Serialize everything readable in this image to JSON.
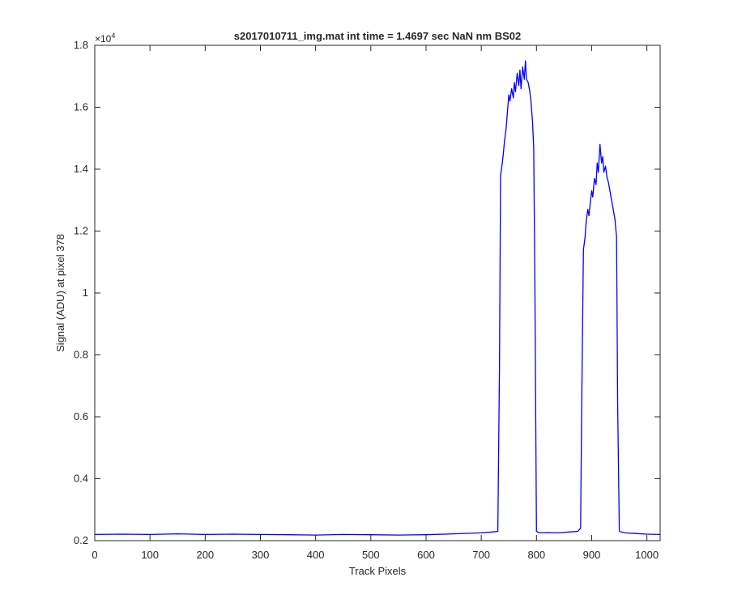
{
  "chart_data": {
    "type": "line",
    "title": "s2017010711_img.mat int time = 1.4697 sec  NaN nm BS02",
    "xlabel": "Track Pixels",
    "ylabel": "Signal (ADU) at pixel 378",
    "y_exponent_label": "×10",
    "y_exponent_power": "4",
    "xlim": [
      0,
      1024
    ],
    "ylim": [
      2000,
      18000
    ],
    "x_ticks": [
      0,
      100,
      200,
      300,
      400,
      500,
      600,
      700,
      800,
      900,
      1000
    ],
    "x_tick_labels": [
      "0",
      "100",
      "200",
      "300",
      "400",
      "500",
      "600",
      "700",
      "800",
      "900",
      "1000"
    ],
    "y_ticks": [
      2000,
      4000,
      6000,
      8000,
      10000,
      12000,
      14000,
      16000,
      18000
    ],
    "y_tick_labels": [
      "0.2",
      "0.4",
      "0.6",
      "0.8",
      "1",
      "1.2",
      "1.4",
      "1.6",
      "1.8"
    ],
    "grid": false,
    "line_color": "#0000ff",
    "series": [
      {
        "x": [
          0,
          50,
          100,
          150,
          200,
          250,
          300,
          350,
          400,
          450,
          500,
          550,
          600,
          650,
          700,
          720,
          730,
          733,
          735,
          738,
          740,
          742,
          745,
          748,
          750,
          752,
          755,
          758,
          760,
          762,
          765,
          768,
          770,
          772,
          775,
          778,
          780,
          782,
          785,
          788,
          790,
          793,
          795,
          797,
          800,
          805,
          820,
          840,
          860,
          875,
          880,
          882,
          885,
          888,
          890,
          893,
          895,
          898,
          900,
          902,
          905,
          908,
          910,
          912,
          915,
          918,
          920,
          922,
          925,
          928,
          930,
          933,
          935,
          938,
          940,
          942,
          945,
          947,
          950,
          960,
          980,
          1000,
          1024
        ],
        "y": [
          2200,
          2210,
          2200,
          2220,
          2200,
          2210,
          2200,
          2190,
          2180,
          2200,
          2190,
          2180,
          2190,
          2220,
          2250,
          2280,
          2300,
          7500,
          13800,
          14200,
          14500,
          14900,
          15300,
          16000,
          16400,
          16200,
          16600,
          16300,
          16800,
          16500,
          17100,
          16700,
          17200,
          16600,
          17300,
          16900,
          17500,
          16900,
          16800,
          16500,
          16200,
          15500,
          14700,
          10500,
          2300,
          2250,
          2260,
          2250,
          2280,
          2300,
          2400,
          6500,
          11400,
          11800,
          12300,
          12700,
          12500,
          13000,
          13300,
          13100,
          13700,
          13500,
          14200,
          13900,
          14800,
          14200,
          14400,
          13900,
          14100,
          13700,
          13600,
          13300,
          13100,
          12800,
          12600,
          12400,
          11800,
          6500,
          2300,
          2250,
          2230,
          2210,
          2200
        ]
      }
    ]
  }
}
